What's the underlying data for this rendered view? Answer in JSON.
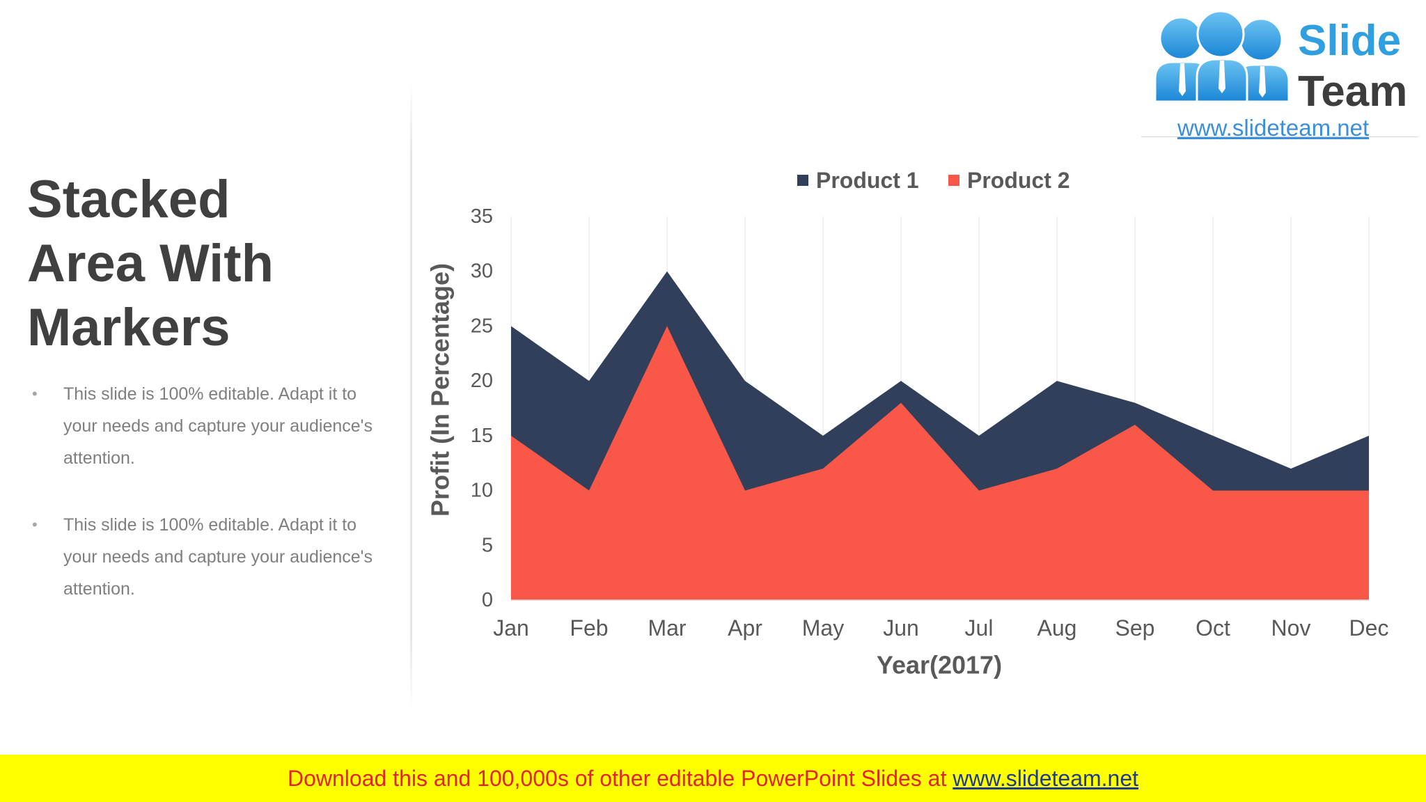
{
  "slide": {
    "title": "Stacked Area With Markers",
    "bullet_glyph": "•",
    "bullets": [
      "This slide is 100% editable. Adapt it to your needs and capture your audience's attention.",
      "This slide is 100% editable. Adapt it to your needs and capture your audience's attention."
    ],
    "colors": {
      "title": "#404040",
      "body": "#7F7F7F"
    }
  },
  "logo": {
    "word1": "Slide",
    "word2": "Team",
    "url": "www.slideteam.net",
    "icon": "people-group-icon",
    "colors": {
      "word1": "#2F9FE0",
      "word2": "#3D3D3D",
      "url": "#3B8ED8"
    }
  },
  "chart_data": {
    "type": "area",
    "categories": [
      "Jan",
      "Feb",
      "Mar",
      "Apr",
      "May",
      "Jun",
      "Jul",
      "Aug",
      "Sep",
      "Oct",
      "Nov",
      "Dec"
    ],
    "series": [
      {
        "name": "Product 1",
        "color": "#323F5B",
        "values": [
          25,
          20,
          30,
          20,
          15,
          20,
          15,
          20,
          18,
          15,
          12,
          15
        ]
      },
      {
        "name": "Product 2",
        "color": "#F95849",
        "values": [
          15,
          10,
          25,
          10,
          12,
          18,
          10,
          12,
          16,
          10,
          10,
          10
        ]
      }
    ],
    "xlabel": "Year(2017)",
    "ylabel": "Profit (In Percentage)",
    "ylim": [
      0,
      35
    ],
    "yticks": [
      0,
      5,
      10,
      15,
      20,
      25,
      30,
      35
    ],
    "grid": true,
    "legend": "top"
  },
  "banner": {
    "text": "Download this and 100,000s of other editable PowerPoint Slides at ",
    "link": "www.slideteam.net",
    "bg_color": "#FFFF00",
    "text_color": "#E4222A",
    "link_color": "#1F3B8C"
  }
}
